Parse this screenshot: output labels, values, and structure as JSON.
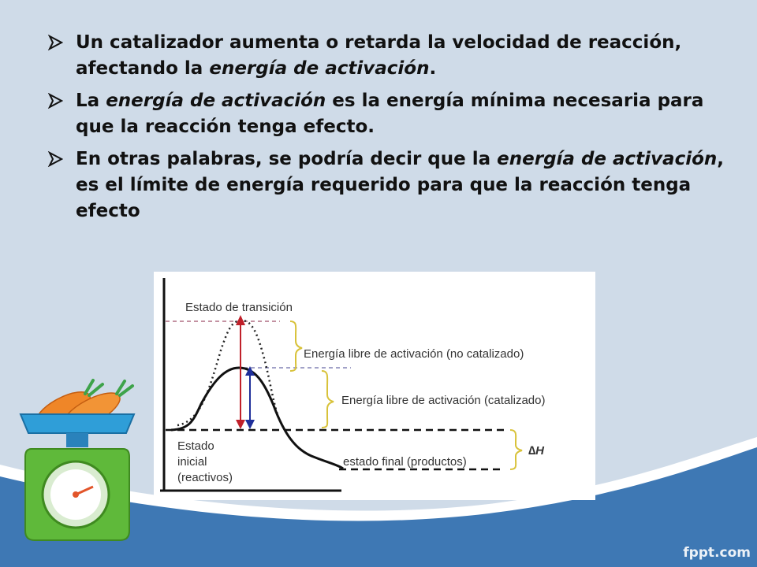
{
  "slide": {
    "bullets": [
      {
        "parts": [
          {
            "text": "Un catalizador aumenta o retarda la velocidad de reacción, afectando la ",
            "italic": false
          },
          {
            "text": "energía de activación",
            "italic": true
          },
          {
            "text": ".",
            "italic": false
          }
        ]
      },
      {
        "parts": [
          {
            "text": "La ",
            "italic": false
          },
          {
            "text": "energía de activación",
            "italic": true
          },
          {
            "text": " es la energía mínima necesaria para que la reacción tenga efecto.",
            "italic": false
          }
        ]
      },
      {
        "parts": [
          {
            "text": "En otras palabras, se podría decir que la ",
            "italic": false
          },
          {
            "text": "energía de activación",
            "italic": true
          },
          {
            "text": ", es el límite de energía requerido para que la reacción tenga efecto",
            "italic": false
          }
        ]
      }
    ]
  },
  "diagram": {
    "labels": {
      "transition_state": "Estado de transición",
      "uncatalyzed": "Energía libre de activación (no catalizado)",
      "catalyzed": "Energía libre de activación  (catalizado)",
      "initial_line1": "Estado",
      "initial_line2": "inicial",
      "initial_line3": "(reactivos)",
      "final_state": "estado final (productos)",
      "delta_h": "∆H"
    },
    "colors": {
      "uncatalyzed_arrow": "#c0202a",
      "catalyzed_arrow": "#1f2f9a",
      "brace": "#d8c23a",
      "dashed_guide": "#a0506a"
    }
  },
  "decoration": {
    "illustration": "scale-with-carrots"
  },
  "footer": {
    "watermark": "fppt.com"
  },
  "theme": {
    "background": "#cfdbe8",
    "wave_blue": "#3e78b4",
    "wave_white": "#ffffff"
  }
}
